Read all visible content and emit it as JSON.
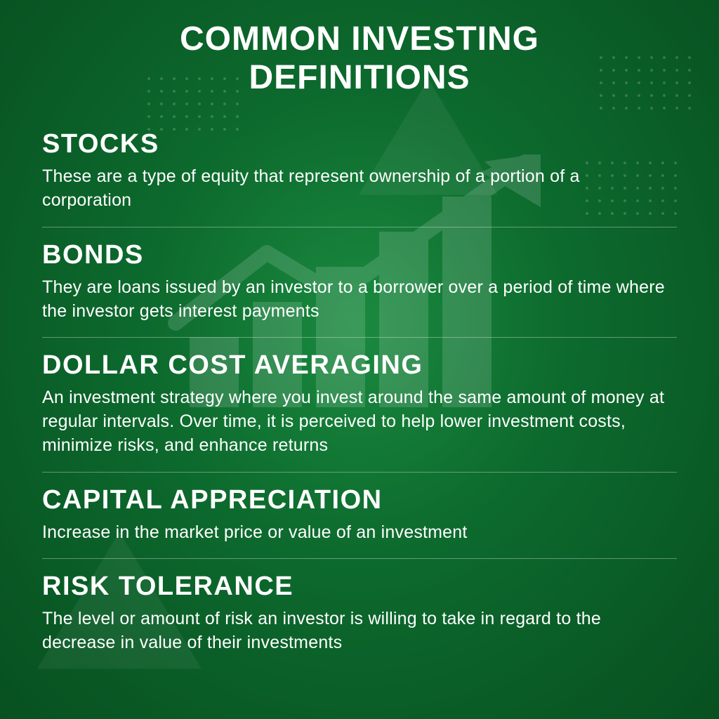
{
  "type": "infographic",
  "background": {
    "gradient_center": "#1a8a3f",
    "gradient_mid": "#0d6b2e",
    "gradient_outer": "#0a5d27",
    "gradient_edge": "#085020"
  },
  "text_color": "#ffffff",
  "divider_color": "rgba(255,255,255,0.35)",
  "decor": {
    "dot_color": "rgba(255,255,255,0.18)",
    "triangle_color": "rgba(255,255,255,0.06)",
    "chart_opacity": 0.14
  },
  "title": {
    "text": "COMMON INVESTING\nDEFINITIONS",
    "fontsize": 48,
    "weight": 800
  },
  "term_style": {
    "fontsize": 38,
    "weight": 800,
    "letter_spacing": 1.5
  },
  "def_style": {
    "fontsize": 25,
    "weight": 400,
    "line_height": 1.35
  },
  "sections": [
    {
      "term": "STOCKS",
      "definition": "These are a type of equity that represent ownership of a portion of a corporation"
    },
    {
      "term": "BONDS",
      "definition": "They are loans issued by an investor to a borrower over a period of time where the investor gets interest payments"
    },
    {
      "term": "DOLLAR COST AVERAGING",
      "definition": "An investment strategy where you invest around the same amount of money at regular intervals. Over time, it is perceived to help lower investment costs, minimize risks, and enhance returns"
    },
    {
      "term": "CAPITAL APPRECIATION",
      "definition": "Increase in the market price or value of an investment"
    },
    {
      "term": "RISK TOLERANCE",
      "definition": "The level or amount of risk an investor is willing to take in regard to the decrease in value of their investments"
    }
  ]
}
